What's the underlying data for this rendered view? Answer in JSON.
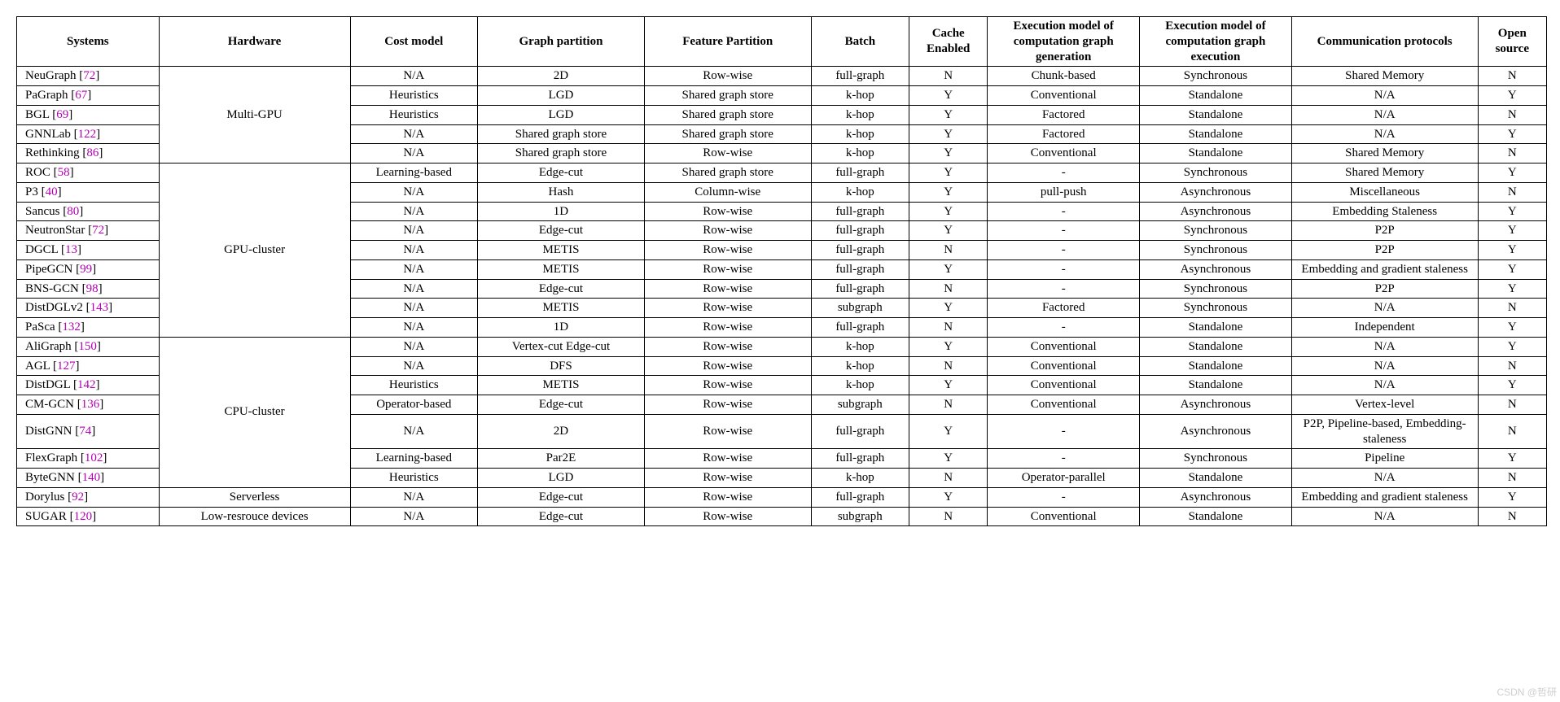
{
  "table": {
    "headers": {
      "systems": "Systems",
      "hardware": "Hardware",
      "cost_model": "Cost model",
      "graph_partition": "Graph partition",
      "feature_partition": "Feature Partition",
      "batch": "Batch",
      "cache_enabled": "Cache Enabled",
      "exec_gen": "Execution model of computation graph generation",
      "exec_run": "Execution model of computation graph execution",
      "comm": "Communication protocols",
      "open_source": "Open source"
    },
    "hw_groups": [
      {
        "label": "Multi-GPU",
        "start": 0,
        "span": 5
      },
      {
        "label": "GPU-cluster",
        "start": 5,
        "span": 9
      },
      {
        "label": "CPU-cluster",
        "start": 14,
        "span": 7
      },
      {
        "label": "Serverless",
        "start": 21,
        "span": 1
      },
      {
        "label": "Low-resrouce devices",
        "start": 22,
        "span": 1
      }
    ],
    "rows": [
      {
        "name": "NeuGraph",
        "cite": "72",
        "cost": "N/A",
        "gp": "2D",
        "fp": "Row-wise",
        "batch": "full-graph",
        "cache": "N",
        "gen": "Chunk-based",
        "exe": "Synchronous",
        "comm": "Shared Memory",
        "open": "N"
      },
      {
        "name": "PaGraph",
        "cite": "67",
        "cost": "Heuristics",
        "gp": "LGD",
        "fp": "Shared graph store",
        "batch": "k-hop",
        "cache": "Y",
        "gen": "Conventional",
        "exe": "Standalone",
        "comm": "N/A",
        "open": "Y"
      },
      {
        "name": "BGL",
        "cite": "69",
        "cost": "Heuristics",
        "gp": "LGD",
        "fp": "Shared graph store",
        "batch": "k-hop",
        "cache": "Y",
        "gen": "Factored",
        "exe": "Standalone",
        "comm": "N/A",
        "open": "N"
      },
      {
        "name": "GNNLab",
        "cite": "122",
        "cost": "N/A",
        "gp": "Shared graph store",
        "fp": "Shared graph store",
        "batch": "k-hop",
        "cache": "Y",
        "gen": "Factored",
        "exe": "Standalone",
        "comm": "N/A",
        "open": "Y"
      },
      {
        "name": "Rethinking",
        "cite": "86",
        "cost": "N/A",
        "gp": "Shared graph store",
        "fp": "Row-wise",
        "batch": "k-hop",
        "cache": "Y",
        "gen": "Conventional",
        "exe": "Standalone",
        "comm": "Shared Memory",
        "open": "N"
      },
      {
        "name": "ROC",
        "cite": "58",
        "cost": "Learning-based",
        "gp": "Edge-cut",
        "fp": "Shared graph store",
        "batch": "full-graph",
        "cache": "Y",
        "gen": "-",
        "exe": "Synchronous",
        "comm": "Shared Memory",
        "open": "Y"
      },
      {
        "name": "P3",
        "cite": "40",
        "cost": "N/A",
        "gp": "Hash",
        "fp": "Column-wise",
        "batch": "k-hop",
        "cache": "Y",
        "gen": "pull-push",
        "exe": "Asynchronous",
        "comm": "Miscellaneous",
        "open": "N"
      },
      {
        "name": "Sancus",
        "cite": "80",
        "cost": "N/A",
        "gp": "1D",
        "fp": "Row-wise",
        "batch": "full-graph",
        "cache": "Y",
        "gen": "-",
        "exe": "Asynchronous",
        "comm": "Embedding Staleness",
        "open": "Y"
      },
      {
        "name": "NeutronStar",
        "cite": "72",
        "cost": "N/A",
        "gp": "Edge-cut",
        "fp": "Row-wise",
        "batch": "full-graph",
        "cache": "Y",
        "gen": "-",
        "exe": "Synchronous",
        "comm": "P2P",
        "open": "Y"
      },
      {
        "name": "DGCL",
        "cite": "13",
        "cost": "N/A",
        "gp": "METIS",
        "fp": "Row-wise",
        "batch": "full-graph",
        "cache": "N",
        "gen": "-",
        "exe": "Synchronous",
        "comm": "P2P",
        "open": "Y"
      },
      {
        "name": "PipeGCN",
        "cite": "99",
        "cost": "N/A",
        "gp": "METIS",
        "fp": "Row-wise",
        "batch": "full-graph",
        "cache": "Y",
        "gen": "-",
        "exe": "Asynchronous",
        "comm": "Embedding and gradient staleness",
        "open": "Y"
      },
      {
        "name": "BNS-GCN",
        "cite": "98",
        "cost": "N/A",
        "gp": "Edge-cut",
        "fp": "Row-wise",
        "batch": "full-graph",
        "cache": "N",
        "gen": "-",
        "exe": "Synchronous",
        "comm": "P2P",
        "open": "Y"
      },
      {
        "name": "DistDGLv2",
        "cite": "143",
        "cost": "N/A",
        "gp": "METIS",
        "fp": "Row-wise",
        "batch": "subgraph",
        "cache": "Y",
        "gen": "Factored",
        "exe": "Synchronous",
        "comm": "N/A",
        "open": "N"
      },
      {
        "name": "PaSca",
        "cite": "132",
        "cost": "N/A",
        "gp": "1D",
        "fp": "Row-wise",
        "batch": "full-graph",
        "cache": "N",
        "gen": "-",
        "exe": "Standalone",
        "comm": "Independent",
        "open": "Y"
      },
      {
        "name": "AliGraph",
        "cite": "150",
        "cost": "N/A",
        "gp": "Vertex-cut Edge-cut",
        "fp": "Row-wise",
        "batch": "k-hop",
        "cache": "Y",
        "gen": "Conventional",
        "exe": "Standalone",
        "comm": "N/A",
        "open": "Y"
      },
      {
        "name": "AGL",
        "cite": "127",
        "cost": "N/A",
        "gp": "DFS",
        "fp": "Row-wise",
        "batch": "k-hop",
        "cache": "N",
        "gen": "Conventional",
        "exe": "Standalone",
        "comm": "N/A",
        "open": "N"
      },
      {
        "name": "DistDGL",
        "cite": "142",
        "cost": "Heuristics",
        "gp": "METIS",
        "fp": "Row-wise",
        "batch": "k-hop",
        "cache": "Y",
        "gen": "Conventional",
        "exe": "Standalone",
        "comm": "N/A",
        "open": "Y"
      },
      {
        "name": "CM-GCN",
        "cite": "136",
        "cost": "Operator-based",
        "gp": "Edge-cut",
        "fp": "Row-wise",
        "batch": "subgraph",
        "cache": "N",
        "gen": "Conventional",
        "exe": "Asynchronous",
        "comm": "Vertex-level",
        "open": "N"
      },
      {
        "name": "DistGNN",
        "cite": "74",
        "cost": "N/A",
        "gp": "2D",
        "fp": "Row-wise",
        "batch": "full-graph",
        "cache": "Y",
        "gen": "-",
        "exe": "Asynchronous",
        "comm": "P2P, Pipeline-based, Embedding-staleness",
        "open": "N"
      },
      {
        "name": "FlexGraph",
        "cite": "102",
        "cost": "Learning-based",
        "gp": "Par2E",
        "fp": "Row-wise",
        "batch": "full-graph",
        "cache": "Y",
        "gen": "-",
        "exe": "Synchronous",
        "comm": "Pipeline",
        "open": "Y"
      },
      {
        "name": "ByteGNN",
        "cite": "140",
        "cost": "Heuristics",
        "gp": "LGD",
        "fp": "Row-wise",
        "batch": "k-hop",
        "cache": "N",
        "gen": "Operator-parallel",
        "exe": "Standalone",
        "comm": "N/A",
        "open": "N"
      },
      {
        "name": "Dorylus",
        "cite": "92",
        "cost": "N/A",
        "gp": "Edge-cut",
        "fp": "Row-wise",
        "batch": "full-graph",
        "cache": "Y",
        "gen": "-",
        "exe": "Asynchronous",
        "comm": "Embedding and gradient staleness",
        "open": "Y"
      },
      {
        "name": "SUGAR",
        "cite": "120",
        "cost": "N/A",
        "gp": "Edge-cut",
        "fp": "Row-wise",
        "batch": "subgraph",
        "cache": "N",
        "gen": "Conventional",
        "exe": "Standalone",
        "comm": "N/A",
        "open": "N"
      }
    ],
    "watermark": "CSDN @哲研"
  }
}
